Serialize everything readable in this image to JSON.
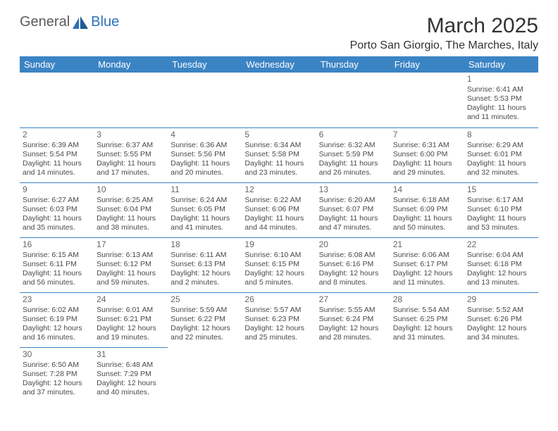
{
  "logo": {
    "text1": "General",
    "text2": "Blue"
  },
  "title": "March 2025",
  "location": "Porto San Giorgio, The Marches, Italy",
  "colors": {
    "header_bg": "#3b84c4",
    "header_text": "#ffffff",
    "rule": "#3b84c4",
    "logo_gray": "#5b5b5b",
    "logo_blue": "#2f71b8",
    "body_text": "#4a4a4a",
    "daynum": "#666666",
    "background": "#ffffff"
  },
  "day_headers": [
    "Sunday",
    "Monday",
    "Tuesday",
    "Wednesday",
    "Thursday",
    "Friday",
    "Saturday"
  ],
  "weeks": [
    [
      null,
      null,
      null,
      null,
      null,
      null,
      {
        "n": "1",
        "sr": "Sunrise: 6:41 AM",
        "ss": "Sunset: 5:53 PM",
        "dl": "Daylight: 11 hours and 11 minutes."
      }
    ],
    [
      {
        "n": "2",
        "sr": "Sunrise: 6:39 AM",
        "ss": "Sunset: 5:54 PM",
        "dl": "Daylight: 11 hours and 14 minutes."
      },
      {
        "n": "3",
        "sr": "Sunrise: 6:37 AM",
        "ss": "Sunset: 5:55 PM",
        "dl": "Daylight: 11 hours and 17 minutes."
      },
      {
        "n": "4",
        "sr": "Sunrise: 6:36 AM",
        "ss": "Sunset: 5:56 PM",
        "dl": "Daylight: 11 hours and 20 minutes."
      },
      {
        "n": "5",
        "sr": "Sunrise: 6:34 AM",
        "ss": "Sunset: 5:58 PM",
        "dl": "Daylight: 11 hours and 23 minutes."
      },
      {
        "n": "6",
        "sr": "Sunrise: 6:32 AM",
        "ss": "Sunset: 5:59 PM",
        "dl": "Daylight: 11 hours and 26 minutes."
      },
      {
        "n": "7",
        "sr": "Sunrise: 6:31 AM",
        "ss": "Sunset: 6:00 PM",
        "dl": "Daylight: 11 hours and 29 minutes."
      },
      {
        "n": "8",
        "sr": "Sunrise: 6:29 AM",
        "ss": "Sunset: 6:01 PM",
        "dl": "Daylight: 11 hours and 32 minutes."
      }
    ],
    [
      {
        "n": "9",
        "sr": "Sunrise: 6:27 AM",
        "ss": "Sunset: 6:03 PM",
        "dl": "Daylight: 11 hours and 35 minutes."
      },
      {
        "n": "10",
        "sr": "Sunrise: 6:25 AM",
        "ss": "Sunset: 6:04 PM",
        "dl": "Daylight: 11 hours and 38 minutes."
      },
      {
        "n": "11",
        "sr": "Sunrise: 6:24 AM",
        "ss": "Sunset: 6:05 PM",
        "dl": "Daylight: 11 hours and 41 minutes."
      },
      {
        "n": "12",
        "sr": "Sunrise: 6:22 AM",
        "ss": "Sunset: 6:06 PM",
        "dl": "Daylight: 11 hours and 44 minutes."
      },
      {
        "n": "13",
        "sr": "Sunrise: 6:20 AM",
        "ss": "Sunset: 6:07 PM",
        "dl": "Daylight: 11 hours and 47 minutes."
      },
      {
        "n": "14",
        "sr": "Sunrise: 6:18 AM",
        "ss": "Sunset: 6:09 PM",
        "dl": "Daylight: 11 hours and 50 minutes."
      },
      {
        "n": "15",
        "sr": "Sunrise: 6:17 AM",
        "ss": "Sunset: 6:10 PM",
        "dl": "Daylight: 11 hours and 53 minutes."
      }
    ],
    [
      {
        "n": "16",
        "sr": "Sunrise: 6:15 AM",
        "ss": "Sunset: 6:11 PM",
        "dl": "Daylight: 11 hours and 56 minutes."
      },
      {
        "n": "17",
        "sr": "Sunrise: 6:13 AM",
        "ss": "Sunset: 6:12 PM",
        "dl": "Daylight: 11 hours and 59 minutes."
      },
      {
        "n": "18",
        "sr": "Sunrise: 6:11 AM",
        "ss": "Sunset: 6:13 PM",
        "dl": "Daylight: 12 hours and 2 minutes."
      },
      {
        "n": "19",
        "sr": "Sunrise: 6:10 AM",
        "ss": "Sunset: 6:15 PM",
        "dl": "Daylight: 12 hours and 5 minutes."
      },
      {
        "n": "20",
        "sr": "Sunrise: 6:08 AM",
        "ss": "Sunset: 6:16 PM",
        "dl": "Daylight: 12 hours and 8 minutes."
      },
      {
        "n": "21",
        "sr": "Sunrise: 6:06 AM",
        "ss": "Sunset: 6:17 PM",
        "dl": "Daylight: 12 hours and 11 minutes."
      },
      {
        "n": "22",
        "sr": "Sunrise: 6:04 AM",
        "ss": "Sunset: 6:18 PM",
        "dl": "Daylight: 12 hours and 13 minutes."
      }
    ],
    [
      {
        "n": "23",
        "sr": "Sunrise: 6:02 AM",
        "ss": "Sunset: 6:19 PM",
        "dl": "Daylight: 12 hours and 16 minutes."
      },
      {
        "n": "24",
        "sr": "Sunrise: 6:01 AM",
        "ss": "Sunset: 6:21 PM",
        "dl": "Daylight: 12 hours and 19 minutes."
      },
      {
        "n": "25",
        "sr": "Sunrise: 5:59 AM",
        "ss": "Sunset: 6:22 PM",
        "dl": "Daylight: 12 hours and 22 minutes."
      },
      {
        "n": "26",
        "sr": "Sunrise: 5:57 AM",
        "ss": "Sunset: 6:23 PM",
        "dl": "Daylight: 12 hours and 25 minutes."
      },
      {
        "n": "27",
        "sr": "Sunrise: 5:55 AM",
        "ss": "Sunset: 6:24 PM",
        "dl": "Daylight: 12 hours and 28 minutes."
      },
      {
        "n": "28",
        "sr": "Sunrise: 5:54 AM",
        "ss": "Sunset: 6:25 PM",
        "dl": "Daylight: 12 hours and 31 minutes."
      },
      {
        "n": "29",
        "sr": "Sunrise: 5:52 AM",
        "ss": "Sunset: 6:26 PM",
        "dl": "Daylight: 12 hours and 34 minutes."
      }
    ],
    [
      {
        "n": "30",
        "sr": "Sunrise: 6:50 AM",
        "ss": "Sunset: 7:28 PM",
        "dl": "Daylight: 12 hours and 37 minutes."
      },
      {
        "n": "31",
        "sr": "Sunrise: 6:48 AM",
        "ss": "Sunset: 7:29 PM",
        "dl": "Daylight: 12 hours and 40 minutes."
      },
      null,
      null,
      null,
      null,
      null
    ]
  ]
}
